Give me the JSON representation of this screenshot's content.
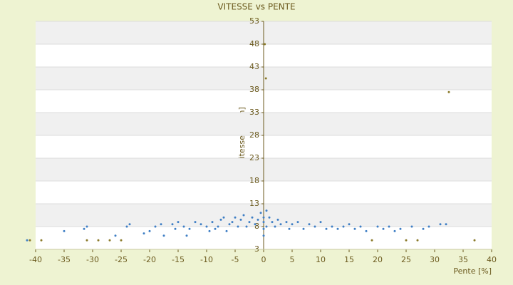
{
  "chart_data": {
    "type": "scatter",
    "title": "VITESSE vs PENTE",
    "x_label": "Pente [%]",
    "y_label": "Vitesse [km/h]",
    "xlim": [
      -40,
      40
    ],
    "ylim": [
      3,
      53
    ],
    "xticks": [
      -40,
      -35,
      -30,
      -25,
      -20,
      -15,
      -10,
      -5,
      0,
      5,
      10,
      15,
      20,
      25,
      30,
      35,
      40
    ],
    "yticks": [
      3,
      8,
      13,
      18,
      23,
      28,
      33,
      38,
      43,
      48,
      53
    ],
    "grid": true,
    "series": [
      {
        "color": "#3f7fc5",
        "x": [
          -41.5,
          -35,
          -31.5,
          -31,
          -26,
          -24,
          -23.5,
          -21,
          -20,
          -19,
          -18,
          -17.5,
          -16,
          -15.5,
          -15,
          -14,
          -13.5,
          -13,
          -12,
          -11,
          -10,
          -9.5,
          -9,
          -8.5,
          -8,
          -7.5,
          -7,
          -6.5,
          -6,
          -5.5,
          -5,
          -4.5,
          -4,
          -3.5,
          -3,
          -2.5,
          -2,
          -1.5,
          -1,
          -0.5,
          0,
          0,
          0,
          0,
          0.5,
          0.5,
          1,
          1.5,
          2,
          2.5,
          3,
          4,
          4.5,
          5,
          6,
          7,
          8,
          9,
          10,
          11,
          12,
          13,
          14,
          15,
          16,
          17,
          18,
          20,
          21,
          22,
          23,
          24,
          26,
          28,
          29,
          31,
          32
        ],
        "y": [
          5,
          7,
          7.5,
          8,
          6,
          8,
          8.5,
          6.5,
          7,
          8,
          8.5,
          6,
          8.5,
          7.5,
          9,
          8,
          6,
          7.5,
          9,
          8.5,
          8,
          7,
          9,
          7.5,
          8,
          9.5,
          10,
          7,
          8.5,
          9,
          10,
          8,
          9.5,
          10.5,
          8,
          9,
          10,
          8.5,
          9.5,
          11,
          6,
          7.5,
          9,
          10,
          11.5,
          8,
          10,
          9,
          8,
          9.5,
          8.5,
          9,
          7.5,
          8.5,
          9,
          7.5,
          8.5,
          8,
          9,
          7.5,
          8,
          7.5,
          8,
          8.5,
          7.5,
          8,
          7,
          8,
          7.5,
          8,
          7,
          7.5,
          8,
          7.5,
          8,
          8.5,
          8.5
        ]
      },
      {
        "color": "#8a7a2a",
        "x": [
          -41,
          -39,
          -31,
          -29,
          -27,
          -25,
          0.2,
          0.4,
          19,
          25,
          27,
          32.5,
          37
        ],
        "y": [
          5,
          5,
          5,
          5,
          5,
          5,
          48,
          40.5,
          5,
          5,
          5,
          37.5,
          5
        ]
      }
    ]
  }
}
